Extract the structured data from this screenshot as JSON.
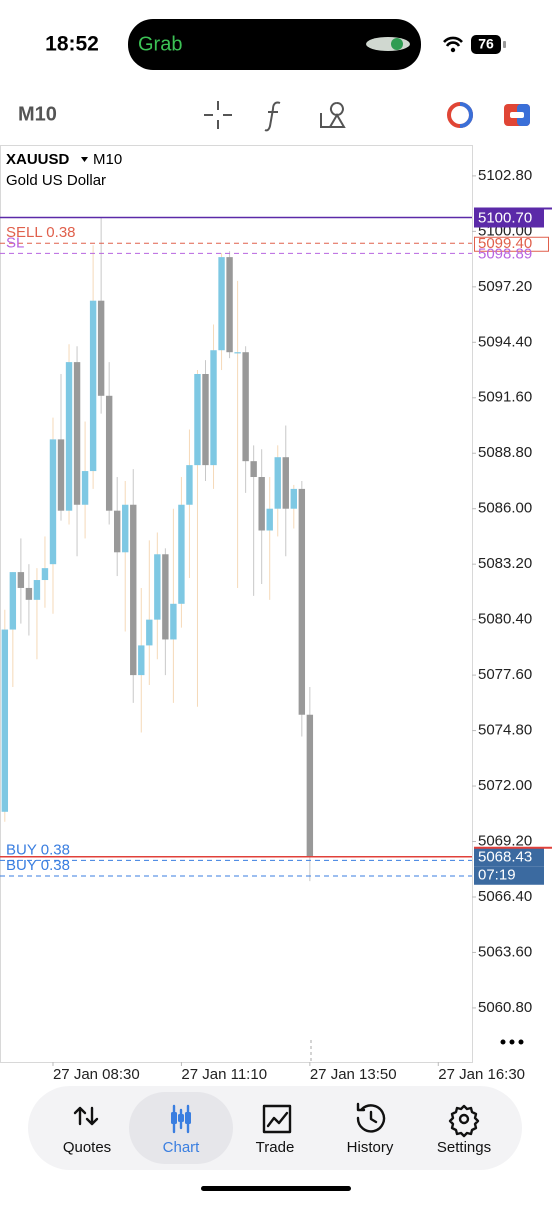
{
  "status_bar": {
    "time": "18:52",
    "app": "Grab",
    "battery": "76"
  },
  "toolbar": {
    "timeframe": "M10"
  },
  "chart_data": {
    "type": "candlestick",
    "symbol": "XAUUSD",
    "timeframe": "M10",
    "description": "Gold US Dollar",
    "up_color": "#7ec8e3",
    "down_color": "#999999",
    "ohlc": [
      [
        5070.7,
        5080.9,
        5070.2,
        5079.9
      ],
      [
        5079.9,
        5082.8,
        5077.0,
        5082.8
      ],
      [
        5082.8,
        5084.5,
        5080.2,
        5082.0
      ],
      [
        5082.0,
        5083.2,
        5079.6,
        5081.4
      ],
      [
        5081.4,
        5083.0,
        5078.4,
        5082.4
      ],
      [
        5082.4,
        5084.6,
        5081.0,
        5083.0
      ],
      [
        5083.2,
        5090.6,
        5080.7,
        5089.5
      ],
      [
        5089.5,
        5092.8,
        5085.4,
        5085.9
      ],
      [
        5085.9,
        5094.3,
        5085.2,
        5093.4
      ],
      [
        5093.4,
        5094.2,
        5083.6,
        5086.2
      ],
      [
        5086.2,
        5090.4,
        5084.5,
        5087.9
      ],
      [
        5087.9,
        5099.3,
        5087.0,
        5096.5
      ],
      [
        5096.5,
        5100.7,
        5090.8,
        5091.7
      ],
      [
        5091.7,
        5093.4,
        5085.2,
        5085.9
      ],
      [
        5085.9,
        5087.6,
        5082.6,
        5083.8
      ],
      [
        5083.8,
        5087.4,
        5079.8,
        5086.2
      ],
      [
        5086.2,
        5088.0,
        5076.2,
        5077.6
      ],
      [
        5077.6,
        5082.0,
        5074.7,
        5079.1
      ],
      [
        5079.1,
        5084.4,
        5077.1,
        5080.4
      ],
      [
        5080.4,
        5084.8,
        5078.4,
        5083.7
      ],
      [
        5083.7,
        5084.0,
        5077.6,
        5079.4
      ],
      [
        5079.4,
        5086.0,
        5076.2,
        5081.2
      ],
      [
        5081.2,
        5087.6,
        5080.0,
        5086.2
      ],
      [
        5086.2,
        5090.0,
        5082.5,
        5088.2
      ],
      [
        5088.2,
        5093.0,
        5076.0,
        5092.8
      ],
      [
        5092.8,
        5093.5,
        5087.4,
        5088.2
      ],
      [
        5088.2,
        5095.3,
        5087.0,
        5094.0
      ],
      [
        5094.0,
        5098.9,
        5093.0,
        5098.7
      ],
      [
        5098.7,
        5099.0,
        5093.6,
        5093.9
      ],
      [
        5093.9,
        5097.5,
        5082.0,
        5093.9
      ],
      [
        5093.9,
        5094.2,
        5086.8,
        5088.4
      ],
      [
        5088.4,
        5089.2,
        5081.6,
        5087.6
      ],
      [
        5087.6,
        5089.0,
        5082.2,
        5084.9
      ],
      [
        5084.9,
        5087.6,
        5081.4,
        5086.0
      ],
      [
        5086.0,
        5089.2,
        5084.6,
        5088.6
      ],
      [
        5088.6,
        5090.2,
        5083.6,
        5086.0
      ],
      [
        5086.0,
        5087.2,
        5085.0,
        5087.0
      ],
      [
        5087.0,
        5087.4,
        5074.5,
        5075.6
      ],
      [
        5075.6,
        5077.0,
        5067.2,
        5068.4
      ]
    ],
    "ylim": [
      5058.07,
      5104.36
    ],
    "yticks": [
      {
        "value": 5102.8,
        "label": "5102.80"
      },
      {
        "value": 5100,
        "label": "5100.00"
      },
      {
        "value": 5097.2,
        "label": "5097.20"
      },
      {
        "value": 5094.4,
        "label": "5094.40"
      },
      {
        "value": 5091.6,
        "label": "5091.60"
      },
      {
        "value": 5088.8,
        "label": "5088.80"
      },
      {
        "value": 5086,
        "label": "5086.00"
      },
      {
        "value": 5083.2,
        "label": "5083.20"
      },
      {
        "value": 5080.4,
        "label": "5080.40"
      },
      {
        "value": 5077.6,
        "label": "5077.60"
      },
      {
        "value": 5074.8,
        "label": "5074.80"
      },
      {
        "value": 5072,
        "label": "5072.00"
      },
      {
        "value": 5069.2,
        "label": "5069.20"
      },
      {
        "value": 5066.4,
        "label": "5066.40"
      },
      {
        "value": 5063.6,
        "label": "5063.60"
      },
      {
        "value": 5060.8,
        "label": "5060.80"
      }
    ],
    "xlim": [
      -0.6,
      58.2
    ],
    "xticks": [
      {
        "value": 6,
        "label": "27 Jan 08:30"
      },
      {
        "value": 22,
        "label": "27 Jan 11:10"
      },
      {
        "value": 38,
        "label": "27 Jan 13:50"
      },
      {
        "value": 54,
        "label": "27 Jan 16:30"
      }
    ],
    "levels": [
      {
        "price": {
          "value": 5100.7,
          "label": "5100.70"
        },
        "color": "#5b2aa8",
        "dash": false,
        "box": "fill",
        "box_color": "#5b2aa8"
      },
      {
        "label": "SELL 0.38",
        "price": {
          "value": 5099.4,
          "label": "5099.40"
        },
        "color": "#e0604c",
        "dash": true,
        "box": "outline"
      },
      {
        "label": "SL",
        "price": {
          "value": 5098.89,
          "label": "5098.89"
        },
        "color": "#b865e0",
        "dash": true,
        "box": "text"
      },
      {
        "price": {
          "value": 5068.43,
          "label": "5068.43"
        },
        "color": "#e0403a",
        "dash": false,
        "box": "fill",
        "box_color": "#3b6aa0"
      },
      {
        "label": "BUY 0.38",
        "price": 5068.25,
        "color": "#3a7ee0",
        "dash": true
      },
      {
        "label": "BUY 0.38",
        "price": 5067.46,
        "color": "#3a7ee0",
        "dash": true
      }
    ],
    "countdown": "07:19"
  },
  "nav": {
    "items": [
      "Quotes",
      "Chart",
      "Trade",
      "History",
      "Settings"
    ],
    "active": 1
  }
}
